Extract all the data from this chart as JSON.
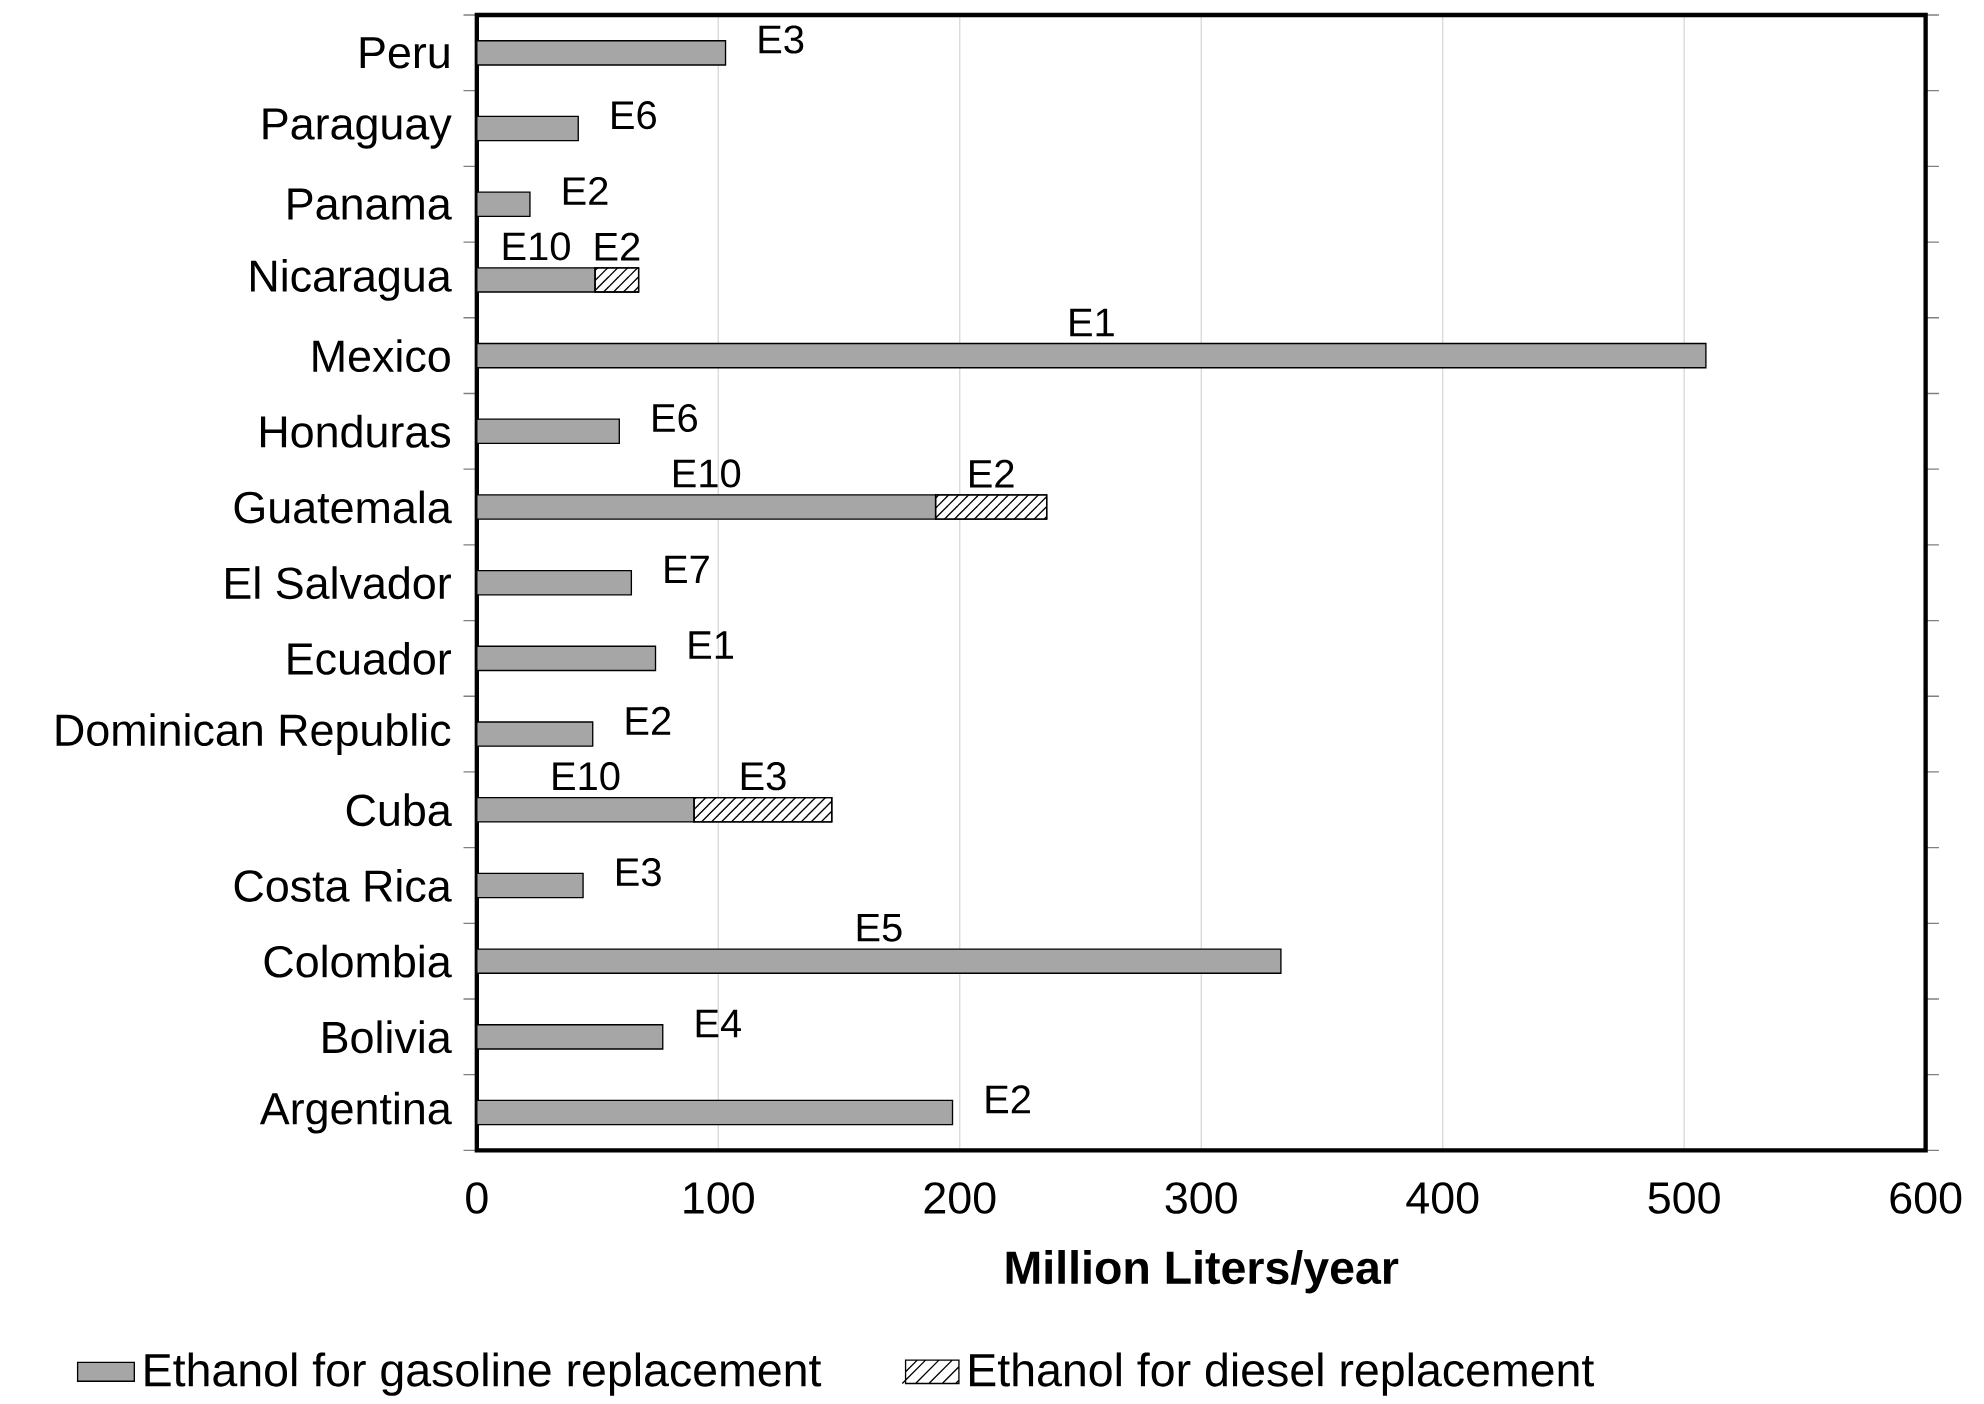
{
  "chart_data": {
    "type": "bar",
    "orientation": "horizontal",
    "stacked": true,
    "categories": [
      "Peru",
      "Paraguay",
      "Panama",
      "Nicaragua",
      "Mexico",
      "Honduras",
      "Guatemala",
      "El Salvador",
      "Ecuador",
      "Dominican Republic",
      "Cuba",
      "Costa Rica",
      "Colombia",
      "Bolivia",
      "Argentina"
    ],
    "series": [
      {
        "name": "Ethanol for gasoline replacement",
        "color": "#a6a6a6",
        "values": [
          103,
          42,
          22,
          49,
          509,
          59,
          190,
          64,
          74,
          48,
          90,
          44,
          333,
          77,
          197
        ],
        "value_labels": [
          "E3",
          "E6",
          "E2",
          "E10",
          "E1",
          "E6",
          "E10",
          "E7",
          "E1",
          "E2",
          "E10",
          "E3",
          "E5",
          "E4",
          "E2"
        ]
      },
      {
        "name": "Ethanol for diesel replacement",
        "color": "#000000",
        "values": [
          null,
          null,
          null,
          18,
          null,
          null,
          46,
          null,
          null,
          null,
          57,
          null,
          null,
          null,
          null
        ],
        "value_labels": [
          null,
          null,
          null,
          "E2",
          null,
          null,
          "E2",
          null,
          null,
          null,
          "E3",
          null,
          null,
          null,
          null
        ]
      }
    ],
    "xlabel": "Million Liters/year",
    "xlim": [
      0,
      600
    ],
    "xticks": [
      0,
      100,
      200,
      300,
      400,
      500,
      600
    ],
    "grid": "x",
    "legend": "bottom"
  }
}
